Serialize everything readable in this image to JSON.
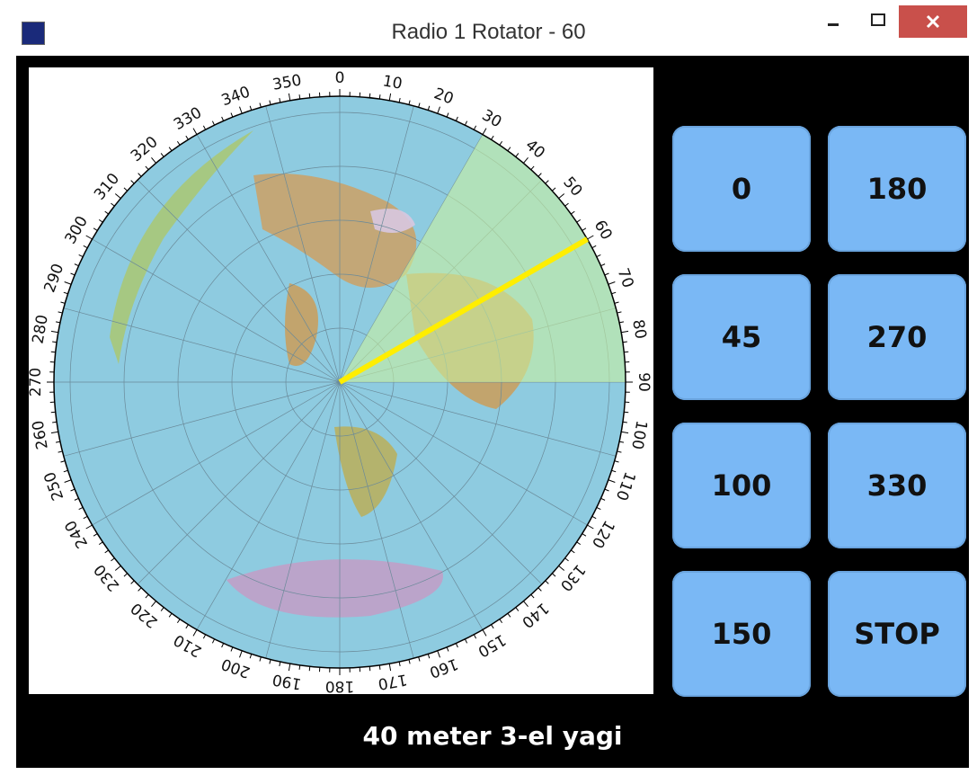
{
  "window": {
    "title": "Radio 1 Rotator - 60"
  },
  "rotator": {
    "heading": 60,
    "beamwidth": 60,
    "dial_labels": [
      0,
      10,
      20,
      30,
      40,
      50,
      60,
      70,
      80,
      90,
      100,
      110,
      120,
      130,
      140,
      150,
      160,
      170,
      180,
      190,
      200,
      210,
      220,
      230,
      240,
      250,
      260,
      270,
      280,
      290,
      300,
      310,
      320,
      330,
      340,
      350
    ]
  },
  "buttons": [
    "0",
    "180",
    "45",
    "270",
    "100",
    "330",
    "150",
    "STOP"
  ],
  "antenna": "40 meter 3-el yagi"
}
